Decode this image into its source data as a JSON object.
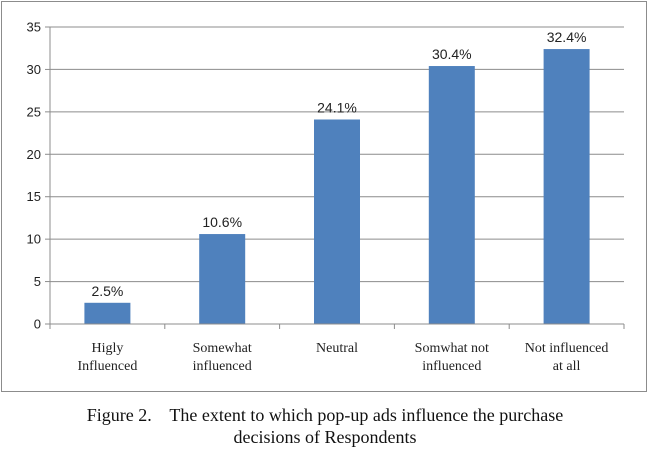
{
  "chart_data": {
    "type": "bar",
    "title": "",
    "xlabel": "",
    "ylabel": "",
    "ylim": [
      0,
      35
    ],
    "yticks": [
      0,
      5,
      10,
      15,
      20,
      25,
      30,
      35
    ],
    "yticks_labels": [
      "0",
      "5",
      "10",
      "15",
      "20",
      "25",
      "30",
      "35"
    ],
    "grid": true,
    "bar_color": "#4f81bd",
    "categories": [
      [
        "Higly",
        "Influenced"
      ],
      [
        "Somewhat",
        "influenced"
      ],
      [
        "Neutral"
      ],
      [
        "Somwhat not",
        "influenced"
      ],
      [
        "Not influenced",
        "at all"
      ]
    ],
    "values": [
      2.5,
      10.6,
      24.1,
      30.4,
      32.4
    ],
    "data_labels": [
      "2.5%",
      "10.6%",
      "24.1%",
      "30.4%",
      "32.4%"
    ]
  },
  "caption": {
    "line1": "Figure 2.    The extent to which pop-up ads influence the purchase",
    "line2": "decisions of Respondents"
  }
}
